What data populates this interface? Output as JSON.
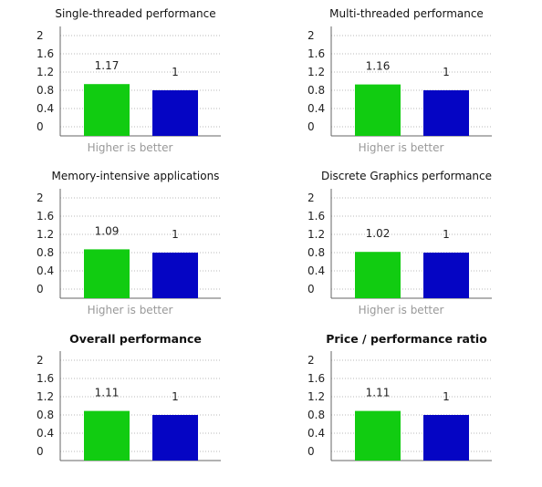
{
  "colors": {
    "series_a": "#11cc11",
    "series_b": "#0505c4",
    "grid": "#b8b8b8",
    "axis": "#666666"
  },
  "chart_data": [
    {
      "type": "bar",
      "title": "Single-threaded performance",
      "title_bold": false,
      "categories": [
        "",
        ""
      ],
      "values": [
        1.17,
        1
      ],
      "value_labels": [
        "1.17",
        "1"
      ],
      "ylim": [
        0,
        2
      ],
      "yticks": [
        "2",
        "1.6",
        "1.2",
        "0.8",
        "0.4",
        "0"
      ],
      "grid": true,
      "footnote": "Higher is better"
    },
    {
      "type": "bar",
      "title": "Multi-threaded performance",
      "title_bold": false,
      "categories": [
        "",
        ""
      ],
      "values": [
        1.16,
        1
      ],
      "value_labels": [
        "1.16",
        "1"
      ],
      "ylim": [
        0,
        2
      ],
      "yticks": [
        "2",
        "1.6",
        "1.2",
        "0.8",
        "0.4",
        "0"
      ],
      "grid": true,
      "footnote": "Higher is better"
    },
    {
      "type": "bar",
      "title": "Memory-intensive applications",
      "title_bold": false,
      "categories": [
        "",
        ""
      ],
      "values": [
        1.09,
        1
      ],
      "value_labels": [
        "1.09",
        "1"
      ],
      "ylim": [
        0,
        2
      ],
      "yticks": [
        "2",
        "1.6",
        "1.2",
        "0.8",
        "0.4",
        "0"
      ],
      "grid": true,
      "footnote": "Higher is better"
    },
    {
      "type": "bar",
      "title": "Discrete Graphics performance",
      "title_bold": false,
      "categories": [
        "",
        ""
      ],
      "values": [
        1.02,
        1
      ],
      "value_labels": [
        "1.02",
        "1"
      ],
      "ylim": [
        0,
        2
      ],
      "yticks": [
        "2",
        "1.6",
        "1.2",
        "0.8",
        "0.4",
        "0"
      ],
      "grid": true,
      "footnote": "Higher is better"
    },
    {
      "type": "bar",
      "title": "Overall performance",
      "title_bold": true,
      "categories": [
        "",
        ""
      ],
      "values": [
        1.11,
        1
      ],
      "value_labels": [
        "1.11",
        "1"
      ],
      "ylim": [
        0,
        2
      ],
      "yticks": [
        "2",
        "1.6",
        "1.2",
        "0.8",
        "0.4",
        "0"
      ],
      "grid": true,
      "footnote": ""
    },
    {
      "type": "bar",
      "title": "Price / performance ratio",
      "title_bold": true,
      "categories": [
        "",
        ""
      ],
      "values": [
        1.11,
        1
      ],
      "value_labels": [
        "1.11",
        "1"
      ],
      "ylim": [
        0,
        2
      ],
      "yticks": [
        "2",
        "1.6",
        "1.2",
        "0.8",
        "0.4",
        "0"
      ],
      "grid": true,
      "footnote": ""
    }
  ]
}
